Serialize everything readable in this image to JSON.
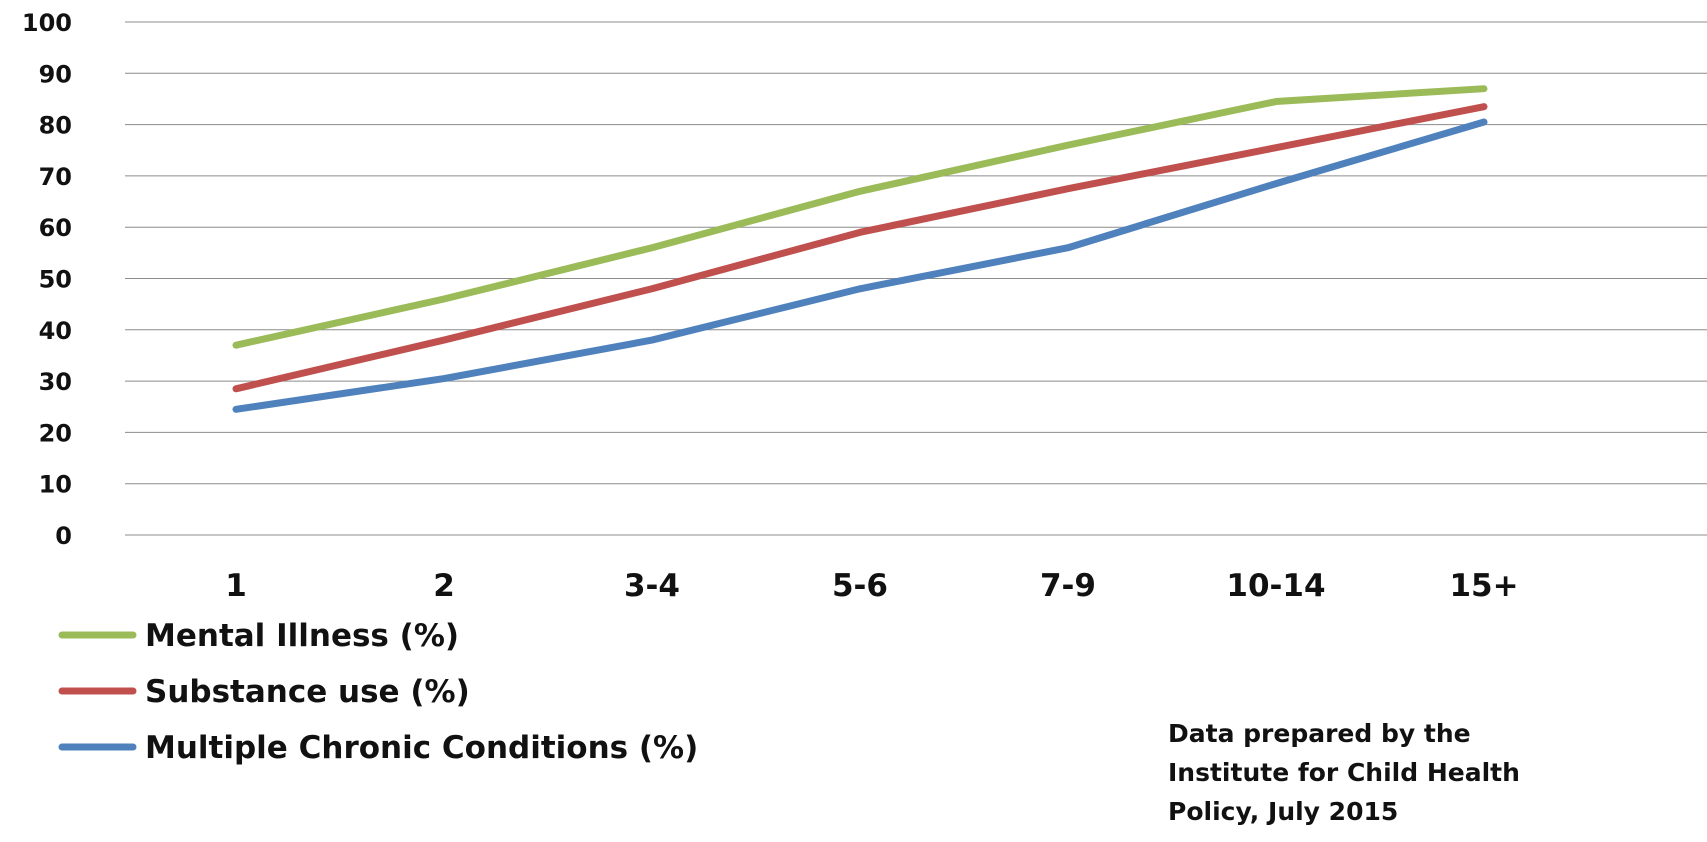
{
  "chart_data": {
    "type": "line",
    "categories": [
      "1",
      "2",
      "3-4",
      "5-6",
      "7-9",
      "10-14",
      "15+"
    ],
    "ylim": [
      0,
      100
    ],
    "yticks": [
      0,
      10,
      20,
      30,
      40,
      50,
      60,
      70,
      80,
      90,
      100
    ],
    "grid": true,
    "legend_position": "bottom-left",
    "series": [
      {
        "name": "Mental Illness (%)",
        "color": "#9BBB59",
        "values": [
          37,
          46,
          56,
          67,
          76,
          84.5,
          87
        ]
      },
      {
        "name": "Substance use (%)",
        "color": "#C0504D",
        "values": [
          28.5,
          38,
          48,
          59,
          67.5,
          75.5,
          83.5
        ]
      },
      {
        "name": "Multiple Chronic Conditions (%)",
        "color": "#4F81BD",
        "values": [
          24.5,
          30.5,
          38,
          48,
          56,
          68.5,
          80.5
        ]
      }
    ],
    "annotation": [
      "Data prepared by the",
      "Institute for Child Health",
      "Policy, July 2015"
    ]
  }
}
